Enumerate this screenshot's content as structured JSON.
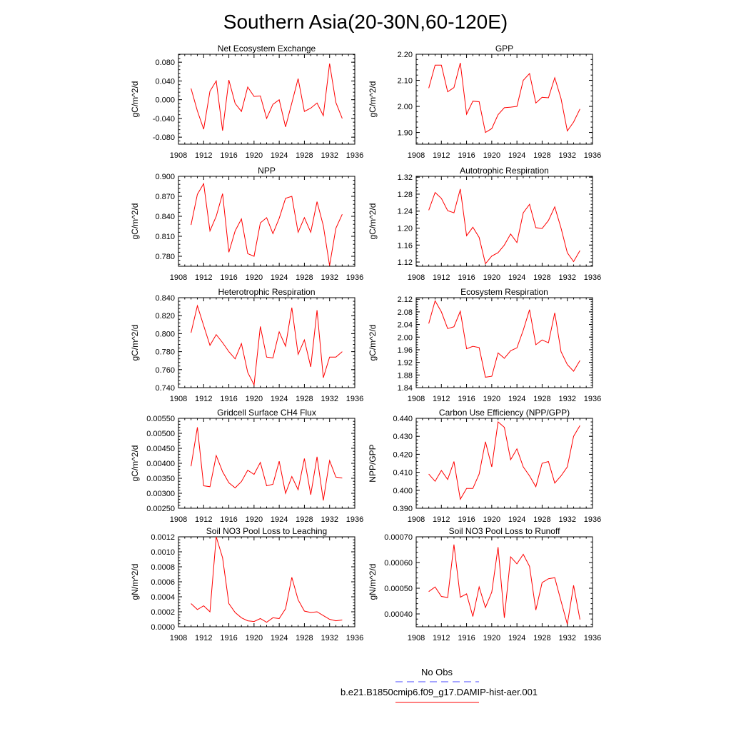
{
  "main_title": "Southern Asia(20-30N,60-120E)",
  "colors": {
    "series": "#ff0000",
    "obs": "#4a4aff",
    "axis": "#000000"
  },
  "legend": {
    "obs_label": "No Obs",
    "model_label": "b.e21.B1850cmip6.f09_g17.DAMIP-hist-aer.001"
  },
  "chart_data": [
    {
      "type": "line",
      "title": "Net Ecosystem Exchange",
      "ylabel": "gC/m^2/d",
      "xlim": [
        1908,
        1936
      ],
      "xticks": [
        1908,
        1912,
        1916,
        1920,
        1924,
        1928,
        1932,
        1936
      ],
      "ylim": [
        -0.095,
        0.097
      ],
      "ytick_values": [
        -0.08,
        -0.04,
        0.0,
        0.04,
        0.08
      ],
      "ytick_labels": [
        "-0.080",
        "-0.040",
        "0.000",
        "0.040",
        "0.080"
      ],
      "x": [
        1910,
        1911,
        1912,
        1913,
        1914,
        1915,
        1916,
        1917,
        1918,
        1919,
        1920,
        1921,
        1922,
        1923,
        1924,
        1925,
        1926,
        1927,
        1928,
        1929,
        1930,
        1931,
        1932,
        1933,
        1934
      ],
      "y": [
        0.024,
        -0.024,
        -0.063,
        0.018,
        0.04,
        -0.066,
        0.042,
        -0.008,
        -0.025,
        0.027,
        0.007,
        0.008,
        -0.04,
        -0.01,
        0.0,
        -0.058,
        -0.007,
        0.045,
        -0.025,
        -0.018,
        -0.007,
        -0.034,
        0.077,
        -0.006,
        -0.04
      ]
    },
    {
      "type": "line",
      "title": "GPP",
      "ylabel": "gC/m^2/d",
      "xlim": [
        1908,
        1936
      ],
      "xticks": [
        1908,
        1912,
        1916,
        1920,
        1924,
        1928,
        1932,
        1936
      ],
      "ylim": [
        1.855,
        2.2
      ],
      "ytick_values": [
        1.9,
        2.0,
        2.1,
        2.2
      ],
      "ytick_labels": [
        "1.90",
        "2.00",
        "2.10",
        "2.20"
      ],
      "x": [
        1910,
        1911,
        1912,
        1913,
        1914,
        1915,
        1916,
        1917,
        1918,
        1919,
        1920,
        1921,
        1922,
        1923,
        1924,
        1925,
        1926,
        1927,
        1928,
        1929,
        1930,
        1931,
        1932,
        1933,
        1934
      ],
      "y": [
        2.07,
        2.158,
        2.158,
        2.056,
        2.072,
        2.167,
        1.97,
        2.02,
        2.018,
        1.9,
        1.915,
        1.968,
        1.995,
        1.997,
        2.0,
        2.1,
        2.126,
        2.013,
        2.035,
        2.033,
        2.11,
        2.03,
        1.906,
        1.94,
        1.99
      ]
    },
    {
      "type": "line",
      "title": "NPP",
      "ylabel": "gC/m^2/d",
      "xlim": [
        1908,
        1936
      ],
      "xticks": [
        1908,
        1912,
        1916,
        1920,
        1924,
        1928,
        1932,
        1936
      ],
      "ylim": [
        0.765,
        0.9
      ],
      "ytick_values": [
        0.78,
        0.81,
        0.84,
        0.87,
        0.9
      ],
      "ytick_labels": [
        "0.780",
        "0.810",
        "0.840",
        "0.870",
        "0.900"
      ],
      "x": [
        1910,
        1911,
        1912,
        1913,
        1914,
        1915,
        1916,
        1917,
        1918,
        1919,
        1920,
        1921,
        1922,
        1923,
        1924,
        1925,
        1926,
        1927,
        1928,
        1929,
        1930,
        1931,
        1932,
        1933,
        1934
      ],
      "y": [
        0.827,
        0.873,
        0.889,
        0.818,
        0.84,
        0.874,
        0.786,
        0.818,
        0.836,
        0.784,
        0.78,
        0.83,
        0.838,
        0.814,
        0.837,
        0.867,
        0.87,
        0.816,
        0.838,
        0.816,
        0.862,
        0.826,
        0.766,
        0.822,
        0.843
      ]
    },
    {
      "type": "line",
      "title": "Autotrophic Respiration",
      "ylabel": "gC/m^2/d",
      "xlim": [
        1908,
        1936
      ],
      "xticks": [
        1908,
        1912,
        1916,
        1920,
        1924,
        1928,
        1932,
        1936
      ],
      "ylim": [
        1.11,
        1.322
      ],
      "ytick_values": [
        1.12,
        1.16,
        1.2,
        1.24,
        1.28,
        1.32
      ],
      "ytick_labels": [
        "1.12",
        "1.16",
        "1.20",
        "1.24",
        "1.28",
        "1.32"
      ],
      "x": [
        1910,
        1911,
        1912,
        1913,
        1914,
        1915,
        1916,
        1917,
        1918,
        1919,
        1920,
        1921,
        1922,
        1923,
        1924,
        1925,
        1926,
        1927,
        1928,
        1929,
        1930,
        1931,
        1932,
        1933,
        1934
      ],
      "y": [
        1.242,
        1.284,
        1.27,
        1.241,
        1.236,
        1.292,
        1.182,
        1.202,
        1.178,
        1.116,
        1.134,
        1.142,
        1.16,
        1.186,
        1.166,
        1.236,
        1.256,
        1.201,
        1.199,
        1.218,
        1.25,
        1.2,
        1.142,
        1.121,
        1.147
      ]
    },
    {
      "type": "line",
      "title": "Heterotrophic Respiration",
      "ylabel": "gC/m^2/d",
      "xlim": [
        1908,
        1936
      ],
      "xticks": [
        1908,
        1912,
        1916,
        1920,
        1924,
        1928,
        1932,
        1936
      ],
      "ylim": [
        0.74,
        0.84
      ],
      "ytick_values": [
        0.74,
        0.76,
        0.78,
        0.8,
        0.82,
        0.84
      ],
      "ytick_labels": [
        "0.740",
        "0.760",
        "0.780",
        "0.800",
        "0.820",
        "0.840"
      ],
      "x": [
        1910,
        1911,
        1912,
        1913,
        1914,
        1915,
        1916,
        1917,
        1918,
        1919,
        1920,
        1921,
        1922,
        1923,
        1924,
        1925,
        1926,
        1927,
        1928,
        1929,
        1930,
        1931,
        1932,
        1933,
        1934
      ],
      "y": [
        0.801,
        0.831,
        0.809,
        0.787,
        0.799,
        0.79,
        0.78,
        0.772,
        0.789,
        0.757,
        0.743,
        0.808,
        0.774,
        0.773,
        0.802,
        0.786,
        0.829,
        0.777,
        0.793,
        0.763,
        0.826,
        0.751,
        0.774,
        0.774,
        0.78
      ]
    },
    {
      "type": "line",
      "title": "Ecosystem Respiration",
      "ylabel": "gC/m^2/d",
      "xlim": [
        1908,
        1936
      ],
      "xticks": [
        1908,
        1912,
        1916,
        1920,
        1924,
        1928,
        1932,
        1936
      ],
      "ylim": [
        1.84,
        2.125
      ],
      "ytick_values": [
        1.84,
        1.88,
        1.92,
        1.96,
        2.0,
        2.04,
        2.08,
        2.12
      ],
      "ytick_labels": [
        "1.84",
        "1.88",
        "1.92",
        "1.96",
        "2.00",
        "2.04",
        "2.08",
        "2.12"
      ],
      "x": [
        1910,
        1911,
        1912,
        1913,
        1914,
        1915,
        1916,
        1917,
        1918,
        1919,
        1920,
        1921,
        1922,
        1923,
        1924,
        1925,
        1926,
        1927,
        1928,
        1929,
        1930,
        1931,
        1932,
        1933,
        1934
      ],
      "y": [
        2.043,
        2.115,
        2.08,
        2.027,
        2.033,
        2.082,
        1.963,
        1.971,
        1.967,
        1.873,
        1.876,
        1.95,
        1.933,
        1.957,
        1.966,
        2.022,
        2.087,
        1.976,
        1.991,
        1.982,
        2.077,
        1.954,
        1.913,
        1.892,
        1.926
      ]
    },
    {
      "type": "line",
      "title": "Gridcell Surface CH4 Flux",
      "ylabel": "gC/m^2/d",
      "xlim": [
        1908,
        1936
      ],
      "xticks": [
        1908,
        1912,
        1916,
        1920,
        1924,
        1928,
        1932,
        1936
      ],
      "ylim": [
        0.0025,
        0.0055
      ],
      "ytick_values": [
        0.0025,
        0.003,
        0.0035,
        0.004,
        0.0045,
        0.005,
        0.0055
      ],
      "ytick_labels": [
        "0.00250",
        "0.00300",
        "0.00350",
        "0.00400",
        "0.00450",
        "0.00500",
        "0.00550"
      ],
      "x": [
        1910,
        1911,
        1912,
        1913,
        1914,
        1915,
        1916,
        1917,
        1918,
        1919,
        1920,
        1921,
        1922,
        1923,
        1924,
        1925,
        1926,
        1927,
        1928,
        1929,
        1930,
        1931,
        1932,
        1933,
        1934
      ],
      "y": [
        0.0039,
        0.0052,
        0.00325,
        0.00322,
        0.00426,
        0.00372,
        0.00335,
        0.00318,
        0.00339,
        0.00377,
        0.00363,
        0.00403,
        0.00325,
        0.0033,
        0.00407,
        0.003,
        0.00356,
        0.00312,
        0.00416,
        0.00295,
        0.00422,
        0.00276,
        0.00409,
        0.00354,
        0.00351
      ]
    },
    {
      "type": "line",
      "title": "Carbon Use Efficiency (NPP/GPP)",
      "ylabel": "NPP/GPP",
      "xlim": [
        1908,
        1936
      ],
      "xticks": [
        1908,
        1912,
        1916,
        1920,
        1924,
        1928,
        1932,
        1936
      ],
      "ylim": [
        0.39,
        0.44
      ],
      "ytick_values": [
        0.39,
        0.4,
        0.41,
        0.42,
        0.43,
        0.44
      ],
      "ytick_labels": [
        "0.390",
        "0.400",
        "0.410",
        "0.420",
        "0.430",
        "0.440"
      ],
      "x": [
        1910,
        1911,
        1912,
        1913,
        1914,
        1915,
        1916,
        1917,
        1918,
        1919,
        1920,
        1921,
        1922,
        1923,
        1924,
        1925,
        1926,
        1927,
        1928,
        1929,
        1930,
        1931,
        1932,
        1933,
        1934
      ],
      "y": [
        0.409,
        0.405,
        0.411,
        0.406,
        0.416,
        0.395,
        0.401,
        0.401,
        0.409,
        0.427,
        0.413,
        0.438,
        0.435,
        0.417,
        0.423,
        0.413,
        0.408,
        0.402,
        0.415,
        0.416,
        0.404,
        0.408,
        0.413,
        0.43,
        0.436
      ]
    },
    {
      "type": "line",
      "title": "Soil NO3 Pool Loss to Leaching",
      "ylabel": "gN/m^2/d",
      "xlim": [
        1908,
        1936
      ],
      "xticks": [
        1908,
        1912,
        1916,
        1920,
        1924,
        1928,
        1932,
        1936
      ],
      "ylim": [
        0.0,
        0.0012
      ],
      "ytick_values": [
        0.0,
        0.0002,
        0.0004,
        0.0006,
        0.0008,
        0.001,
        0.0012
      ],
      "ytick_labels": [
        "0.0000",
        "0.0002",
        "0.0004",
        "0.0006",
        "0.0008",
        "0.0010",
        "0.0012"
      ],
      "x": [
        1910,
        1911,
        1912,
        1913,
        1914,
        1915,
        1916,
        1917,
        1918,
        1919,
        1920,
        1921,
        1922,
        1923,
        1924,
        1925,
        1926,
        1927,
        1928,
        1929,
        1930,
        1931,
        1932,
        1933,
        1934
      ],
      "y": [
        0.00031,
        0.00023,
        0.00028,
        0.0002,
        0.0012,
        0.00092,
        0.00031,
        0.00019,
        0.00012,
        8e-05,
        7e-05,
        0.00011,
        6e-05,
        0.00012,
        0.00011,
        0.00024,
        0.00066,
        0.00036,
        0.00021,
        0.00019,
        0.0002,
        0.00015,
        0.0001,
        8e-05,
        9e-05
      ]
    },
    {
      "type": "line",
      "title": "Soil NO3 Pool Loss to Runoff",
      "ylabel": "gN/m^2/d",
      "xlim": [
        1908,
        1936
      ],
      "xticks": [
        1908,
        1912,
        1916,
        1920,
        1924,
        1928,
        1932,
        1936
      ],
      "ylim": [
        0.00035,
        0.0007
      ],
      "ytick_values": [
        0.0004,
        0.0005,
        0.0006,
        0.0007
      ],
      "ytick_labels": [
        "0.00040",
        "0.00050",
        "0.00060",
        "0.00070"
      ],
      "x": [
        1910,
        1911,
        1912,
        1913,
        1914,
        1915,
        1916,
        1917,
        1918,
        1919,
        1920,
        1921,
        1922,
        1923,
        1924,
        1925,
        1926,
        1927,
        1928,
        1929,
        1930,
        1931,
        1932,
        1933,
        1934
      ],
      "y": [
        0.000487,
        0.000505,
        0.000468,
        0.000464,
        0.00067,
        0.000465,
        0.000478,
        0.00039,
        0.000505,
        0.000425,
        0.000485,
        0.00066,
        0.000385,
        0.000622,
        0.000595,
        0.000632,
        0.000585,
        0.000415,
        0.000522,
        0.000537,
        0.000541,
        0.00045,
        0.00036,
        0.000511,
        0.000378
      ]
    }
  ]
}
